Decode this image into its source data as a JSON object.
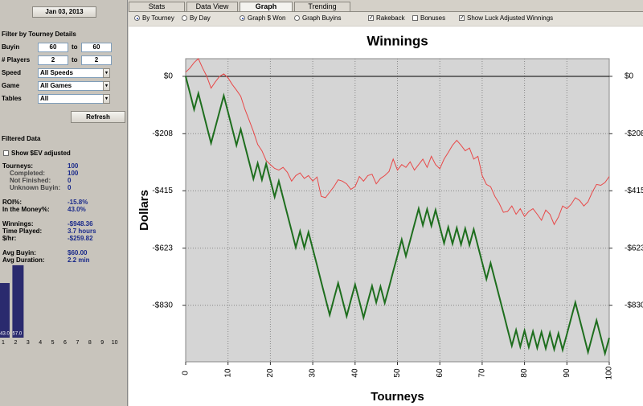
{
  "sidebar": {
    "date": "Jan 03, 2013",
    "filter_title": "Filter by Tourney Details",
    "ranges": [
      {
        "label": "Buyin",
        "from": "60",
        "sep": "to",
        "to": "60"
      },
      {
        "label": "# Players",
        "from": "2",
        "sep": "to",
        "to": "2"
      }
    ],
    "selects": [
      {
        "label": "Speed",
        "value": "All Speeds"
      },
      {
        "label": "Game",
        "value": "All Games"
      },
      {
        "label": "Tables",
        "value": "All"
      }
    ],
    "refresh": "Refresh",
    "filtered_title": "Filtered Data",
    "ev_option": {
      "label": "Show $EV adjusted",
      "checked": false
    },
    "stats": [
      [
        {
          "label": "Tourneys:",
          "value": "100"
        },
        {
          "label": "Completed:",
          "value": "100",
          "indent": true
        },
        {
          "label": "Not Finished:",
          "value": "0",
          "indent": true
        },
        {
          "label": "Unknown Buyin:",
          "value": "0",
          "indent": true
        }
      ],
      [
        {
          "label": "ROI%:",
          "value": "-15.8%"
        },
        {
          "label": "In the Money%:",
          "value": "43.0%"
        }
      ],
      [
        {
          "label": "Winnings:",
          "value": "-$948.36"
        },
        {
          "label": "Time Played:",
          "value": "3.7 hours"
        },
        {
          "label": "$/hr:",
          "value": "-$259.82"
        }
      ],
      [
        {
          "label": "Avg Buyin:",
          "value": "$60.00"
        },
        {
          "label": "Avg Duration:",
          "value": "2.2 min"
        }
      ]
    ]
  },
  "tabs": [
    {
      "label": "Stats"
    },
    {
      "label": "Data View"
    },
    {
      "label": "Graph",
      "active": true
    },
    {
      "label": "Trending"
    }
  ],
  "options": [
    {
      "kind": "radio",
      "label": "By Tourney",
      "checked": true
    },
    {
      "kind": "radio",
      "label": "By Day",
      "checked": false
    },
    {
      "kind": "radio",
      "label": "Graph $ Won",
      "checked": true
    },
    {
      "kind": "radio",
      "label": "Graph Buyins",
      "checked": false
    },
    {
      "kind": "checkbox",
      "label": "Rakeback",
      "checked": true
    },
    {
      "kind": "checkbox",
      "label": "Bonuses",
      "checked": false
    },
    {
      "kind": "checkbox",
      "label": "Show Luck Adjusted Winnings",
      "checked": true
    }
  ],
  "chart_data": [
    {
      "type": "line",
      "title": "Winnings",
      "x_label": "Tourneys",
      "y_label": "Dollars",
      "x": [
        0,
        1,
        2,
        3,
        4,
        5,
        6,
        7,
        8,
        9,
        10,
        11,
        12,
        13,
        14,
        15,
        16,
        17,
        18,
        19,
        20,
        21,
        22,
        23,
        24,
        25,
        26,
        27,
        28,
        29,
        30,
        31,
        32,
        33,
        34,
        35,
        36,
        37,
        38,
        39,
        40,
        41,
        42,
        43,
        44,
        45,
        46,
        47,
        48,
        49,
        50,
        51,
        52,
        53,
        54,
        55,
        56,
        57,
        58,
        59,
        60,
        61,
        62,
        63,
        64,
        65,
        66,
        67,
        68,
        69,
        70,
        71,
        72,
        73,
        74,
        75,
        76,
        77,
        78,
        79,
        80,
        81,
        82,
        83,
        84,
        85,
        86,
        87,
        88,
        89,
        90,
        91,
        92,
        93,
        94,
        95,
        96,
        97,
        98,
        99,
        100
      ],
      "series": [
        {
          "color": "#1e6e1e",
          "values": [
            0,
            -60,
            -120,
            -62,
            -122,
            -182,
            -242,
            -185,
            -127,
            -70,
            -130,
            -190,
            -250,
            -192,
            -252,
            -312,
            -372,
            -315,
            -375,
            -317,
            -377,
            -437,
            -380,
            -440,
            -500,
            -560,
            -620,
            -562,
            -622,
            -565,
            -625,
            -685,
            -745,
            -805,
            -865,
            -807,
            -750,
            -810,
            -870,
            -812,
            -755,
            -815,
            -875,
            -817,
            -760,
            -820,
            -762,
            -822,
            -765,
            -707,
            -650,
            -592,
            -652,
            -595,
            -537,
            -480,
            -540,
            -482,
            -542,
            -485,
            -545,
            -605,
            -547,
            -607,
            -550,
            -610,
            -552,
            -612,
            -555,
            -615,
            -675,
            -735,
            -677,
            -737,
            -797,
            -857,
            -917,
            -977,
            -920,
            -980,
            -922,
            -982,
            -925,
            -985,
            -927,
            -987,
            -930,
            -990,
            -932,
            -992,
            -935,
            -877,
            -820,
            -880,
            -940,
            -1000,
            -942,
            -885,
            -945,
            -1005,
            -948
          ]
        },
        {
          "color": "#e84848",
          "values": [
            15,
            30,
            50,
            64,
            30,
            0,
            -43,
            -20,
            0,
            9,
            -5,
            -30,
            -50,
            -72,
            -120,
            -160,
            -200,
            -247,
            -270,
            -305,
            -320,
            -334,
            -340,
            -330,
            -348,
            -380,
            -360,
            -350,
            -370,
            -360,
            -380,
            -365,
            -435,
            -440,
            -420,
            -400,
            -375,
            -380,
            -390,
            -410,
            -400,
            -363,
            -380,
            -360,
            -355,
            -390,
            -370,
            -360,
            -345,
            -300,
            -340,
            -320,
            -330,
            -310,
            -340,
            -320,
            -300,
            -330,
            -290,
            -320,
            -335,
            -300,
            -276,
            -250,
            -232,
            -250,
            -270,
            -260,
            -300,
            -290,
            -360,
            -392,
            -400,
            -435,
            -460,
            -493,
            -490,
            -470,
            -500,
            -480,
            -508,
            -490,
            -480,
            -500,
            -522,
            -485,
            -500,
            -537,
            -510,
            -470,
            -480,
            -464,
            -440,
            -450,
            -470,
            -455,
            -420,
            -392,
            -395,
            -385,
            -363
          ]
        }
      ],
      "xlim": [
        0,
        100
      ],
      "xticks": [
        0,
        10,
        20,
        30,
        40,
        50,
        60,
        70,
        80,
        90,
        100
      ],
      "ylim": [
        -1035,
        64
      ],
      "yticks": [
        {
          "value": 0,
          "label": "$0"
        },
        {
          "value": -208,
          "label": "-$208"
        },
        {
          "value": -415,
          "label": "-$415"
        },
        {
          "value": -623,
          "label": "-$623"
        },
        {
          "value": -830,
          "label": "-$830"
        }
      ],
      "grid": true,
      "right_axis": true
    },
    {
      "type": "bar",
      "categories": [
        "1",
        "2",
        "3",
        "4",
        "5",
        "6",
        "7",
        "8",
        "9",
        "10"
      ],
      "values": [
        43,
        57,
        0,
        0,
        0,
        0,
        0,
        0,
        0,
        0
      ],
      "value_labels": [
        "43.0",
        "57.0",
        null,
        null,
        null,
        null,
        null,
        null,
        null,
        null
      ],
      "color": "#2a2a6e",
      "ylim": [
        0,
        62
      ]
    }
  ]
}
